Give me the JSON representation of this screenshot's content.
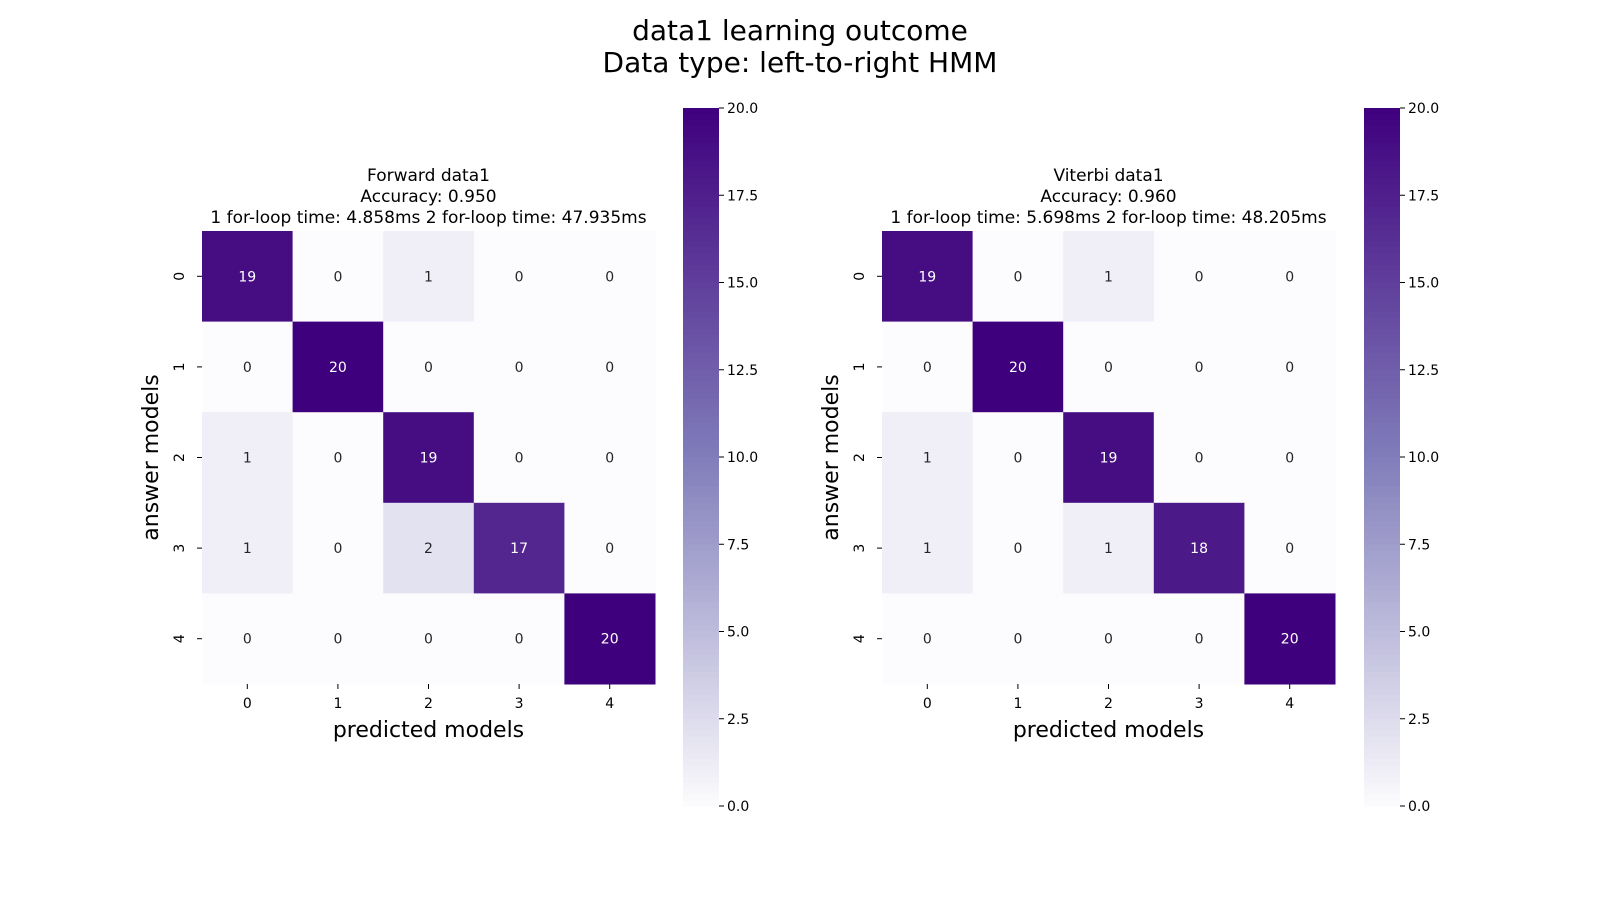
{
  "figure": {
    "suptitle_line1": "data1 learning outcome",
    "suptitle_line2": "Data type: left-to-right HMM"
  },
  "colormap": {
    "name": "Purples",
    "low": "#fcfbfd",
    "mid": "#807dba",
    "high": "#3f007d"
  },
  "chart_data": [
    {
      "type": "heatmap",
      "title_lines": [
        "Forward data1",
        "Accuracy: 0.950",
        "1 for-loop time: 4.858ms      2 for-loop time: 47.935ms"
      ],
      "xlabel": "predicted models",
      "ylabel": "answer models",
      "x_categories": [
        "0",
        "1",
        "2",
        "3",
        "4"
      ],
      "y_categories": [
        "0",
        "1",
        "2",
        "3",
        "4"
      ],
      "values": [
        [
          19,
          0,
          1,
          0,
          0
        ],
        [
          0,
          20,
          0,
          0,
          0
        ],
        [
          1,
          0,
          19,
          0,
          0
        ],
        [
          1,
          0,
          2,
          17,
          0
        ],
        [
          0,
          0,
          0,
          0,
          20
        ]
      ],
      "vmin": 0,
      "vmax": 20,
      "colorbar_ticks": [
        "0.0",
        "2.5",
        "5.0",
        "7.5",
        "10.0",
        "12.5",
        "15.0",
        "17.5",
        "20.0"
      ]
    },
    {
      "type": "heatmap",
      "title_lines": [
        "Viterbi data1",
        "Accuracy: 0.960",
        "1 for-loop time: 5.698ms      2 for-loop time: 48.205ms"
      ],
      "xlabel": "predicted models",
      "ylabel": "answer models",
      "x_categories": [
        "0",
        "1",
        "2",
        "3",
        "4"
      ],
      "y_categories": [
        "0",
        "1",
        "2",
        "3",
        "4"
      ],
      "values": [
        [
          19,
          0,
          1,
          0,
          0
        ],
        [
          0,
          20,
          0,
          0,
          0
        ],
        [
          1,
          0,
          19,
          0,
          0
        ],
        [
          1,
          0,
          1,
          18,
          0
        ],
        [
          0,
          0,
          0,
          0,
          20
        ]
      ],
      "vmin": 0,
      "vmax": 20,
      "colorbar_ticks": [
        "0.0",
        "2.5",
        "5.0",
        "7.5",
        "10.0",
        "12.5",
        "15.0",
        "17.5",
        "20.0"
      ]
    }
  ]
}
